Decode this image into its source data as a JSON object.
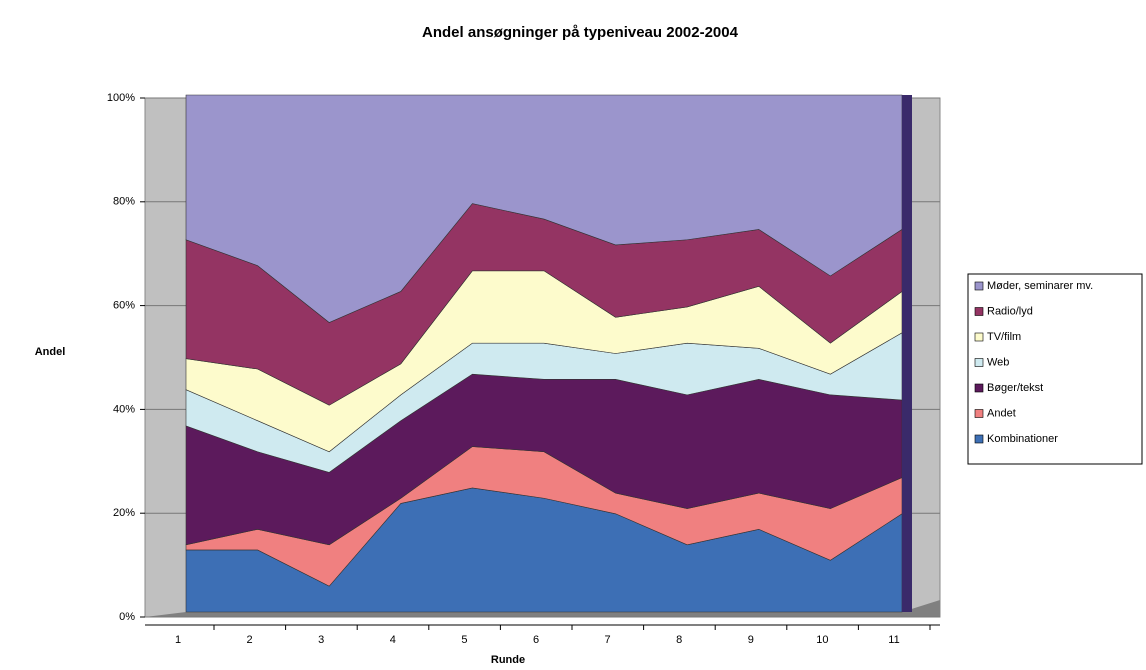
{
  "chart_data": {
    "type": "stacked_area",
    "title": "Andel ansøgninger på typeniveau 2002-2004",
    "xlabel": "Runde",
    "ylabel": "Andel",
    "categories": [
      "1",
      "2",
      "3",
      "4",
      "5",
      "6",
      "7",
      "8",
      "9",
      "10",
      "11"
    ],
    "series": [
      {
        "name": "Kombinationer",
        "color": "#3d6fb5",
        "values": [
          12,
          12,
          5,
          21,
          24,
          22,
          19,
          13,
          16,
          10,
          19
        ]
      },
      {
        "name": "Andet",
        "color": "#f08080",
        "values": [
          1,
          4,
          8,
          1,
          8,
          9,
          4,
          7,
          7,
          10,
          7
        ]
      },
      {
        "name": "Bøger/tekst",
        "color": "#5c1a5c",
        "values": [
          23,
          15,
          14,
          15,
          14,
          14,
          22,
          22,
          22,
          22,
          15
        ]
      },
      {
        "name": "Web",
        "color": "#cfeaf0",
        "values": [
          7,
          6,
          4,
          5,
          6,
          7,
          5,
          10,
          6,
          4,
          13
        ]
      },
      {
        "name": "TV/film",
        "color": "#fdfbcc",
        "values": [
          6,
          10,
          9,
          6,
          14,
          14,
          7,
          7,
          12,
          6,
          8
        ]
      },
      {
        "name": "Radio/lyd",
        "color": "#943463",
        "values": [
          23,
          20,
          16,
          14,
          13,
          10,
          14,
          13,
          11,
          13,
          12
        ]
      },
      {
        "name": "Møder, seminarer mv.",
        "color": "#9b95cc",
        "values": [
          28,
          33,
          44,
          38,
          21,
          24,
          29,
          28,
          26,
          35,
          26
        ]
      }
    ],
    "ylim": [
      0,
      100
    ],
    "yticks": [
      {
        "value": 0,
        "label": "0%"
      },
      {
        "value": 20,
        "label": "20%"
      },
      {
        "value": 40,
        "label": "40%"
      },
      {
        "value": 60,
        "label": "60%"
      },
      {
        "value": 80,
        "label": "80%"
      },
      {
        "value": 100,
        "label": "100%"
      }
    ],
    "grid": true,
    "legend": "right"
  }
}
